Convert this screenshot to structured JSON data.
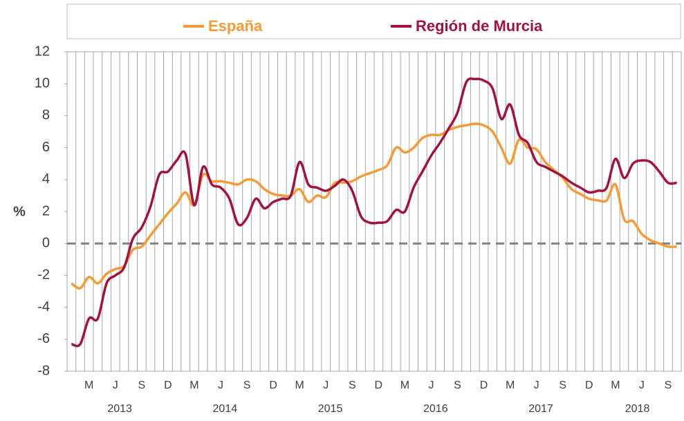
{
  "chart_data": {
    "type": "line",
    "y_label": "%",
    "categories": [
      null,
      null,
      "M",
      null,
      null,
      "J",
      null,
      null,
      "S",
      null,
      null,
      "D",
      null,
      null,
      "M",
      null,
      null,
      "J",
      null,
      null,
      "S",
      null,
      null,
      "D",
      null,
      null,
      "M",
      null,
      null,
      "J",
      null,
      null,
      "S",
      null,
      null,
      "D",
      null,
      null,
      "M",
      null,
      null,
      "J",
      null,
      null,
      "S",
      null,
      null,
      "D",
      null,
      null,
      "M",
      null,
      null,
      "J",
      null,
      null,
      "S",
      null,
      null,
      "D",
      null,
      null,
      "M",
      null,
      null,
      "J",
      null,
      null,
      "S",
      null
    ],
    "years": [
      "2013",
      "2014",
      "2015",
      "2016",
      "2017",
      "2018"
    ],
    "series": [
      {
        "name": "España",
        "color": "#f39b36",
        "values": [
          -2.5,
          -2.8,
          -2.1,
          -2.5,
          -1.9,
          -1.6,
          -1.4,
          -0.4,
          -0.2,
          0.5,
          1.2,
          1.9,
          2.5,
          3.2,
          2.4,
          4.3,
          3.9,
          3.9,
          3.8,
          3.7,
          4.0,
          3.9,
          3.4,
          3.1,
          3.0,
          3.0,
          3.4,
          2.6,
          3.0,
          2.9,
          3.8,
          3.8,
          3.9,
          4.2,
          4.4,
          4.6,
          4.9,
          6.0,
          5.7,
          6.0,
          6.6,
          6.8,
          6.8,
          7.1,
          7.3,
          7.4,
          7.5,
          7.4,
          7.0,
          6.0,
          5.0,
          6.5,
          6.0,
          5.9,
          5.1,
          4.6,
          4.1,
          3.4,
          3.1,
          2.8,
          2.7,
          2.7,
          3.7,
          1.5,
          1.4,
          0.6,
          0.2,
          0.0,
          -0.2,
          -0.2
        ]
      },
      {
        "name": "Región de Murcia",
        "color": "#a3123f",
        "values": [
          -6.3,
          -6.3,
          -4.7,
          -4.7,
          -2.5,
          -2.0,
          -1.5,
          0.3,
          1.0,
          2.3,
          4.3,
          4.5,
          5.2,
          5.6,
          2.4,
          4.8,
          3.7,
          3.5,
          2.8,
          1.2,
          1.6,
          2.8,
          2.2,
          2.6,
          2.8,
          3.0,
          5.1,
          3.7,
          3.5,
          3.3,
          3.6,
          4.0,
          3.3,
          1.7,
          1.3,
          1.3,
          1.4,
          2.1,
          2.0,
          3.5,
          4.5,
          5.5,
          6.3,
          7.2,
          8.2,
          10.1,
          10.3,
          10.2,
          9.7,
          7.8,
          8.7,
          6.8,
          6.3,
          5.1,
          4.8,
          4.5,
          4.2,
          3.8,
          3.5,
          3.2,
          3.3,
          3.5,
          5.3,
          4.1,
          5.0,
          5.2,
          5.1,
          4.5,
          3.8,
          3.8
        ]
      }
    ],
    "ylim": [
      -8,
      12
    ],
    "yticks": [
      -8,
      -6,
      -4,
      -2,
      0,
      2,
      4,
      6,
      8,
      10,
      12
    ],
    "reference_line": 0
  }
}
